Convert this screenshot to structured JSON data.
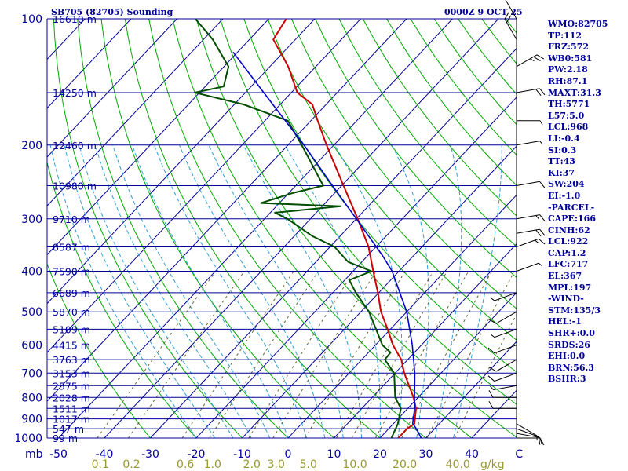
{
  "header": {
    "station": "SB705 (82705) Sounding",
    "time": "0000Z  9 OCT 25"
  },
  "colors": {
    "isobar": "#000099",
    "isotherm": "#000099",
    "dry_adiabat": "#00aa00",
    "moist_adiabat": "#2f9fd8",
    "mixing_ratio": "#666633",
    "temperature": "#cc0000",
    "dewpoint": "#004d00",
    "parcel": "#0000cc",
    "text": "#000099",
    "mixing_ratio_label": "#999933"
  },
  "indices": [
    "WMO:82705",
    "TP:112",
    "FRZ:572",
    "WB0:581",
    "PW:2.18",
    "RH:87.1",
    "MAXT:31.3",
    "TH:5771",
    "L57:5.0",
    "LCL:968",
    "LI:-0.4",
    "SI:0.3",
    "TT:43",
    "KI:37",
    "SW:204",
    "EI:-1.0",
    "-PARCEL-",
    "CAPE:166",
    "CINH:62",
    "LCL:922",
    "CAP:1.2",
    "LFC:717",
    "EL:367",
    "MPL:197",
    "-WIND-",
    "STM:135/3",
    "HEL:-1",
    "SHR+:0.0",
    "SRDS:26",
    "EHI:0.0",
    "BRN:56.3",
    "BSHR:3"
  ],
  "chart_data": {
    "type": "line",
    "diagram": "skew-T log-P",
    "xlabel_unit": "C",
    "ylabel_unit": "mb",
    "mixing_ratio_unit": "g/kg",
    "p_range": [
      1000,
      100
    ],
    "pressure_labels": [
      {
        "p": 100,
        "label": "100"
      },
      {
        "p": 200,
        "label": "200"
      },
      {
        "p": 300,
        "label": "300"
      },
      {
        "p": 400,
        "label": "400"
      },
      {
        "p": 500,
        "label": "500"
      },
      {
        "p": 600,
        "label": "600"
      },
      {
        "p": 700,
        "label": "700"
      },
      {
        "p": 800,
        "label": "800"
      },
      {
        "p": 900,
        "label": "900"
      },
      {
        "p": 1000,
        "label": "1000"
      }
    ],
    "temperature_ticks": [
      {
        "t": -50,
        "label": "-50"
      },
      {
        "t": -40,
        "label": "-40"
      },
      {
        "t": -30,
        "label": "-30"
      },
      {
        "t": -20,
        "label": "-20"
      },
      {
        "t": -10,
        "label": "-10"
      },
      {
        "t": 0,
        "label": "0"
      },
      {
        "t": 10,
        "label": "10"
      },
      {
        "t": 20,
        "label": "20"
      },
      {
        "t": 30,
        "label": "30"
      },
      {
        "t": 40,
        "label": "40"
      }
    ],
    "mixing_ratio_labels": [
      {
        "w": 0.1,
        "label": "0.1"
      },
      {
        "w": 0.2,
        "label": "0.2"
      },
      {
        "w": 0.6,
        "label": "0.6"
      },
      {
        "w": 1.0,
        "label": "1.0"
      },
      {
        "w": 2.0,
        "label": "2.0"
      },
      {
        "w": 3.0,
        "label": "3.0"
      },
      {
        "w": 5.0,
        "label": "5.0"
      },
      {
        "w": 10.0,
        "label": "10.0"
      },
      {
        "w": 20.0,
        "label": "20.0"
      },
      {
        "w": 40.0,
        "label": "40.0"
      }
    ],
    "height_labels": [
      {
        "p": 100,
        "label": "16610 m"
      },
      {
        "p": 150,
        "label": "14250 m"
      },
      {
        "p": 200,
        "label": "12460 m"
      },
      {
        "p": 250,
        "label": "10980 m"
      },
      {
        "p": 300,
        "label": "9710 m"
      },
      {
        "p": 350,
        "label": "8587 m"
      },
      {
        "p": 400,
        "label": "7590 m"
      },
      {
        "p": 450,
        "label": "6689 m"
      },
      {
        "p": 500,
        "label": "5870 m"
      },
      {
        "p": 550,
        "label": "5109 m"
      },
      {
        "p": 600,
        "label": "4415 m"
      },
      {
        "p": 650,
        "label": "3763 m"
      },
      {
        "p": 700,
        "label": "3153 m"
      },
      {
        "p": 750,
        "label": "2575 m"
      },
      {
        "p": 800,
        "label": "2028 m"
      },
      {
        "p": 850,
        "label": "1511 m"
      },
      {
        "p": 900,
        "label": "1017 m"
      },
      {
        "p": 950,
        "label": "547 m"
      },
      {
        "p": 1000,
        "label": "99 m"
      }
    ],
    "series": [
      {
        "key": "temperature",
        "points": [
          {
            "p": 1000,
            "t": 24.0
          },
          {
            "p": 950,
            "t": 24.0
          },
          {
            "p": 925,
            "t": 24.6
          },
          {
            "p": 850,
            "t": 21.8
          },
          {
            "p": 800,
            "t": 19.0
          },
          {
            "p": 700,
            "t": 12.0
          },
          {
            "p": 650,
            "t": 8.6
          },
          {
            "p": 600,
            "t": 3.8
          },
          {
            "p": 550,
            "t": -0.6
          },
          {
            "p": 500,
            "t": -5.6
          },
          {
            "p": 450,
            "t": -10.2
          },
          {
            "p": 400,
            "t": -15.6
          },
          {
            "p": 350,
            "t": -21.6
          },
          {
            "p": 300,
            "t": -29.7
          },
          {
            "p": 250,
            "t": -39.6
          },
          {
            "p": 200,
            "t": -51.6
          },
          {
            "p": 175,
            "t": -58.5
          },
          {
            "p": 160,
            "t": -63.0
          },
          {
            "p": 150,
            "t": -68.7
          },
          {
            "p": 130,
            "t": -76.0
          },
          {
            "p": 112,
            "t": -84.8
          },
          {
            "p": 100,
            "t": -86.2
          }
        ]
      },
      {
        "key": "dewpoint",
        "points": [
          {
            "p": 1000,
            "t": 22.5
          },
          {
            "p": 925,
            "t": 21.0
          },
          {
            "p": 850,
            "t": 18.5
          },
          {
            "p": 800,
            "t": 15.0
          },
          {
            "p": 750,
            "t": 12.5
          },
          {
            "p": 700,
            "t": 9.8
          },
          {
            "p": 650,
            "t": 5.0
          },
          {
            "p": 625,
            "t": 4.8
          },
          {
            "p": 600,
            "t": 1.5
          },
          {
            "p": 500,
            "t": -8.2
          },
          {
            "p": 450,
            "t": -15.0
          },
          {
            "p": 420,
            "t": -19.0
          },
          {
            "p": 400,
            "t": -16.0
          },
          {
            "p": 380,
            "t": -23.0
          },
          {
            "p": 350,
            "t": -29.0
          },
          {
            "p": 330,
            "t": -36.0
          },
          {
            "p": 300,
            "t": -45.0
          },
          {
            "p": 290,
            "t": -49.0
          },
          {
            "p": 280,
            "t": -36.0
          },
          {
            "p": 275,
            "t": -54.0
          },
          {
            "p": 260,
            "t": -49.0
          },
          {
            "p": 250,
            "t": -44.0
          },
          {
            "p": 200,
            "t": -57.0
          },
          {
            "p": 175,
            "t": -65.0
          },
          {
            "p": 160,
            "t": -78.0
          },
          {
            "p": 150,
            "t": -91.0
          },
          {
            "p": 145,
            "t": -86.0
          },
          {
            "p": 130,
            "t": -89.0
          },
          {
            "p": 112,
            "t": -98.0
          },
          {
            "p": 100,
            "t": -106.0
          }
        ]
      },
      {
        "key": "parcel",
        "points": [
          {
            "p": 1000,
            "t": 29.0
          },
          {
            "p": 950,
            "t": 26.0
          },
          {
            "p": 922,
            "t": 24.1
          },
          {
            "p": 850,
            "t": 21.5
          },
          {
            "p": 800,
            "t": 19.2
          },
          {
            "p": 717,
            "t": 15.2
          },
          {
            "p": 700,
            "t": 14.3
          },
          {
            "p": 600,
            "t": 8.0
          },
          {
            "p": 500,
            "t": 0.0
          },
          {
            "p": 400,
            "t": -11.5
          },
          {
            "p": 367,
            "t": -16.8
          },
          {
            "p": 300,
            "t": -30.0
          },
          {
            "p": 250,
            "t": -42.0
          },
          {
            "p": 200,
            "t": -56.5
          },
          {
            "p": 150,
            "t": -76.0
          },
          {
            "p": 120,
            "t": -91.0
          }
        ]
      }
    ],
    "wind_barbs": [
      {
        "p": 1000,
        "dir": 90,
        "kt": 10
      },
      {
        "p": 975,
        "dir": 100,
        "kt": 10
      },
      {
        "p": 950,
        "dir": 110,
        "kt": 10
      },
      {
        "p": 925,
        "dir": 120,
        "kt": 5
      },
      {
        "p": 850,
        "dir": 270,
        "kt": 10
      },
      {
        "p": 800,
        "dir": 270,
        "kt": 10
      },
      {
        "p": 750,
        "dir": 260,
        "kt": 5
      },
      {
        "p": 700,
        "dir": 250,
        "kt": 10
      },
      {
        "p": 650,
        "dir": 240,
        "kt": 10
      },
      {
        "p": 600,
        "dir": 250,
        "kt": 10
      },
      {
        "p": 550,
        "dir": 250,
        "kt": 5
      },
      {
        "p": 500,
        "dir": 240,
        "kt": 10
      },
      {
        "p": 450,
        "dir": 250,
        "kt": 5
      },
      {
        "p": 400,
        "dir": 70,
        "kt": 5
      },
      {
        "p": 350,
        "dir": 70,
        "kt": 15
      },
      {
        "p": 325,
        "dir": 80,
        "kt": 20
      },
      {
        "p": 300,
        "dir": 80,
        "kt": 15
      },
      {
        "p": 250,
        "dir": 80,
        "kt": 10
      },
      {
        "p": 200,
        "dir": 80,
        "kt": 5
      },
      {
        "p": 175,
        "dir": 90,
        "kt": 5
      },
      {
        "p": 150,
        "dir": 80,
        "kt": 20
      },
      {
        "p": 130,
        "dir": 60,
        "kt": 25
      },
      {
        "p": 112,
        "dir": 330,
        "kt": 20
      },
      {
        "p": 100,
        "dir": 330,
        "kt": 10
      }
    ]
  }
}
